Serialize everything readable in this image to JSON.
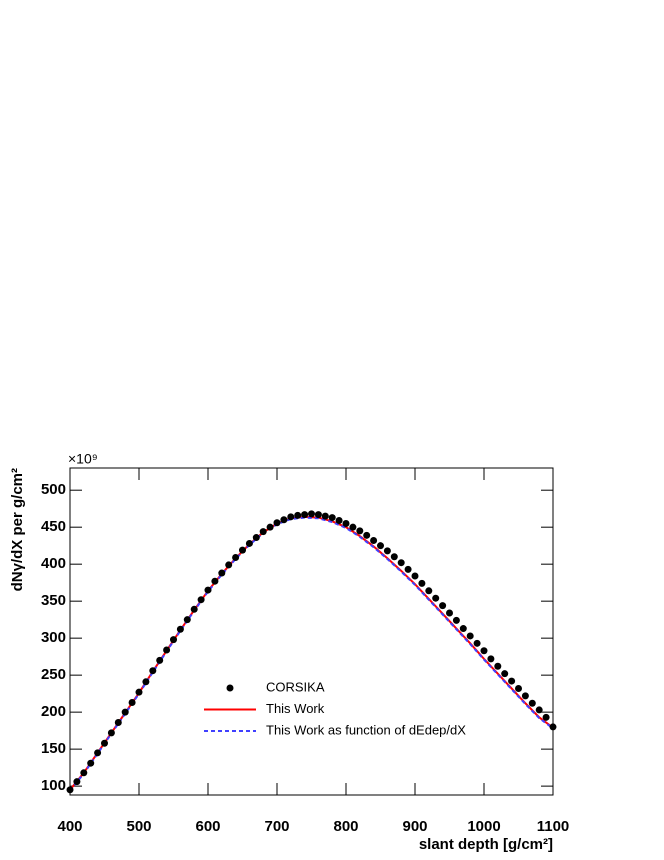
{
  "chart_data": {
    "type": "line",
    "x_label": "slant depth [g/cm²]",
    "y_label": "dNγ/dX per g/cm²",
    "y_multiplier": "×10⁹",
    "xlim": [
      400,
      1100
    ],
    "xticks": [
      400,
      500,
      600,
      700,
      800,
      900,
      1000,
      1100
    ],
    "ylim": [
      88,
      530
    ],
    "yticks": [
      100,
      150,
      200,
      250,
      300,
      350,
      400,
      450,
      500
    ],
    "series": [
      {
        "name": "CORSIKA",
        "color": "#000000",
        "style": "points",
        "x": [
          400,
          410,
          420,
          430,
          440,
          450,
          460,
          470,
          480,
          490,
          500,
          510,
          520,
          530,
          540,
          550,
          560,
          570,
          580,
          590,
          600,
          610,
          620,
          630,
          640,
          650,
          660,
          670,
          680,
          690,
          700,
          710,
          720,
          730,
          740,
          750,
          760,
          770,
          780,
          790,
          800,
          810,
          820,
          830,
          840,
          850,
          860,
          870,
          880,
          890,
          900,
          910,
          920,
          930,
          940,
          950,
          960,
          970,
          980,
          990,
          1000,
          1010,
          1020,
          1030,
          1040,
          1050,
          1060,
          1070,
          1080,
          1090,
          1100
        ],
        "values": [
          95,
          106,
          118,
          131,
          145,
          158,
          172,
          186,
          200,
          213,
          227,
          241,
          256,
          270,
          284,
          298,
          312,
          325,
          339,
          352,
          365,
          377,
          388,
          399,
          409,
          419,
          428,
          436,
          444,
          450,
          456,
          460,
          464,
          466,
          467,
          468,
          467,
          465,
          463,
          459,
          455,
          450,
          445,
          439,
          432,
          425,
          418,
          410,
          402,
          393,
          384,
          374,
          364,
          354,
          344,
          334,
          324,
          313,
          303,
          293,
          283,
          272,
          262,
          252,
          242,
          232,
          222,
          212,
          203,
          193,
          180
        ]
      },
      {
        "name": "This Work",
        "color": "#ff0000",
        "style": "solid",
        "x": [
          400,
          420,
          440,
          460,
          480,
          500,
          520,
          540,
          560,
          580,
          600,
          620,
          640,
          660,
          680,
          700,
          720,
          740,
          760,
          780,
          800,
          820,
          840,
          860,
          880,
          900,
          920,
          940,
          960,
          980,
          1000,
          1020,
          1040,
          1060,
          1080,
          1100
        ],
        "values": [
          95,
          118,
          145,
          172,
          199,
          226,
          255,
          283,
          311,
          338,
          364,
          387,
          408,
          427,
          443,
          455,
          462,
          464,
          463,
          458,
          450,
          438,
          424,
          408,
          391,
          373,
          353,
          333,
          313,
          293,
          272,
          252,
          232,
          212,
          193,
          179
        ]
      },
      {
        "name": "This Work as function of dEdep/dX",
        "color": "#4040ff",
        "style": "dashed",
        "x": [
          400,
          420,
          440,
          460,
          480,
          500,
          520,
          540,
          560,
          580,
          600,
          620,
          640,
          660,
          680,
          700,
          720,
          740,
          760,
          780,
          800,
          820,
          840,
          860,
          880,
          900,
          920,
          940,
          960,
          980,
          1000,
          1020,
          1040,
          1060,
          1080,
          1100
        ],
        "values": [
          94,
          117,
          144,
          171,
          198,
          225,
          254,
          282,
          310,
          337,
          363,
          386,
          407,
          426,
          442,
          454,
          461,
          463,
          462,
          457,
          449,
          437,
          423,
          407,
          390,
          372,
          352,
          332,
          312,
          292,
          271,
          251,
          231,
          211,
          192,
          178
        ]
      }
    ]
  }
}
